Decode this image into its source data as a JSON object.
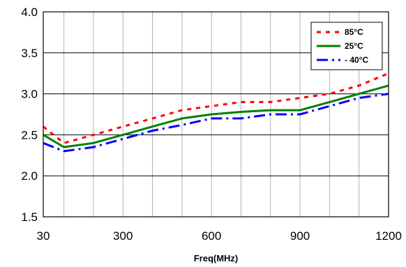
{
  "chart_data": {
    "type": "line",
    "title": "",
    "xlabel": "Freq(MHz)",
    "ylabel": "",
    "xlim": [
      30,
      1200
    ],
    "ylim": [
      1.5,
      4.0
    ],
    "xticks": [
      30,
      300,
      600,
      900,
      1200
    ],
    "yticks": [
      "1.5",
      "2.0",
      "2.5",
      "3.0",
      "3.5",
      "4.0"
    ],
    "grid": true,
    "legend_position": "top-right",
    "series": [
      {
        "name": "85°C",
        "color": "#ff0000",
        "style": "dotted",
        "x": [
          30,
          100,
          200,
          300,
          400,
          500,
          600,
          700,
          800,
          900,
          1000,
          1100,
          1200
        ],
        "y": [
          2.6,
          2.4,
          2.5,
          2.6,
          2.7,
          2.8,
          2.85,
          2.9,
          2.9,
          2.95,
          3.0,
          3.1,
          3.25
        ]
      },
      {
        "name": "25°C",
        "color": "#008000",
        "style": "solid",
        "x": [
          30,
          100,
          200,
          300,
          400,
          500,
          600,
          700,
          800,
          900,
          1000,
          1100,
          1200
        ],
        "y": [
          2.5,
          2.35,
          2.4,
          2.5,
          2.6,
          2.7,
          2.75,
          2.78,
          2.8,
          2.8,
          2.9,
          3.0,
          3.1
        ]
      },
      {
        "name": "- 40°C",
        "color": "#0000ff",
        "style": "dashdot",
        "x": [
          30,
          100,
          200,
          300,
          400,
          500,
          600,
          700,
          800,
          900,
          1000,
          1100,
          1200
        ],
        "y": [
          2.4,
          2.3,
          2.35,
          2.45,
          2.55,
          2.62,
          2.7,
          2.7,
          2.75,
          2.75,
          2.85,
          2.95,
          3.0
        ]
      }
    ]
  }
}
